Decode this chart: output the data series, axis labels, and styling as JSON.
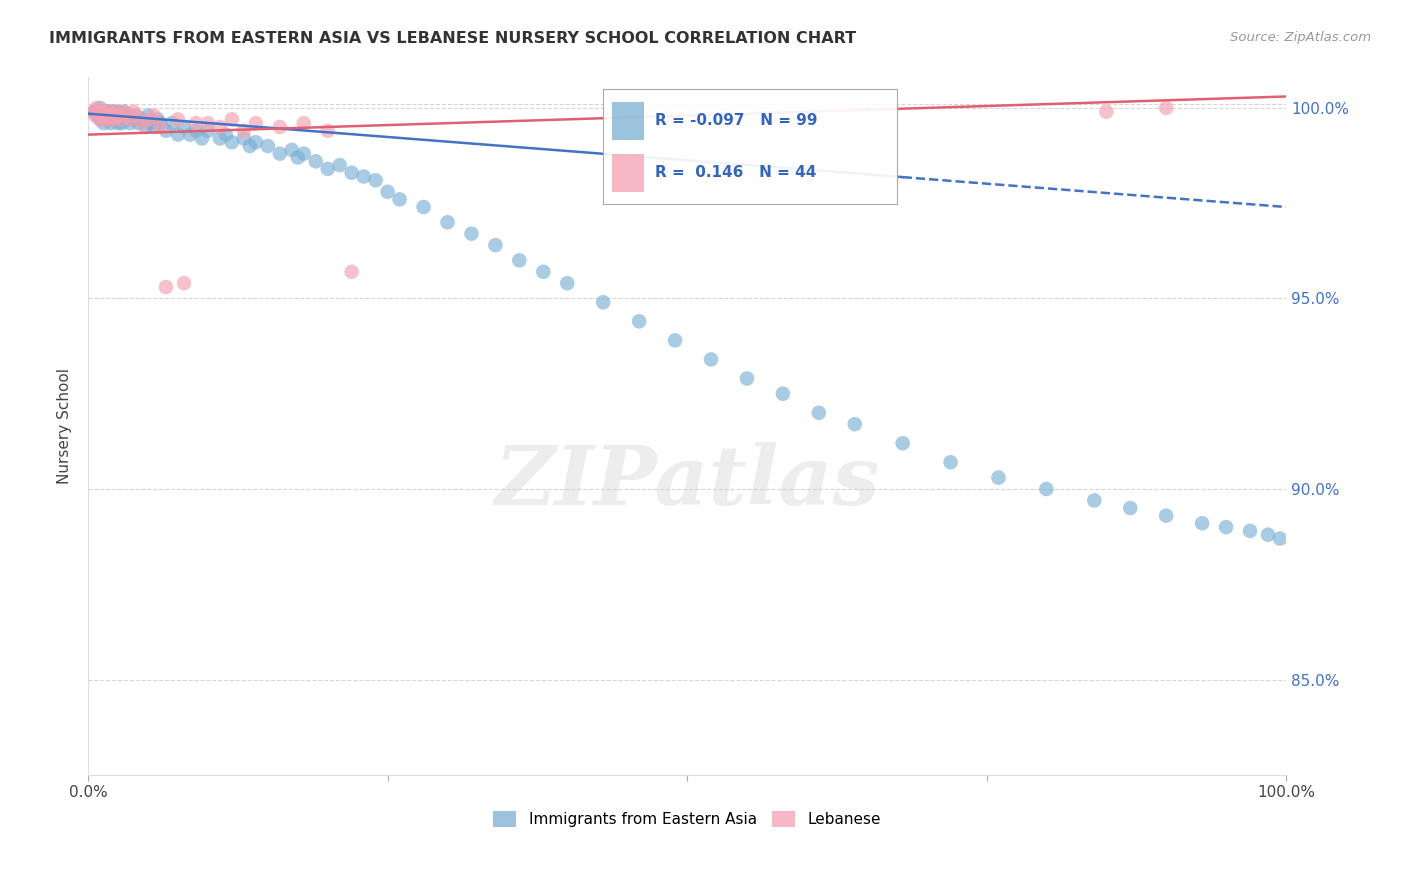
{
  "title": "IMMIGRANTS FROM EASTERN ASIA VS LEBANESE NURSERY SCHOOL CORRELATION CHART",
  "source": "Source: ZipAtlas.com",
  "ylabel": "Nursery School",
  "legend_blue_label": "Immigrants from Eastern Asia",
  "legend_pink_label": "Lebanese",
  "R_blue": -0.097,
  "N_blue": 99,
  "R_pink": 0.146,
  "N_pink": 44,
  "blue_color": "#7BAFD4",
  "pink_color": "#F4A0B0",
  "blue_line_color": "#4472C4",
  "pink_line_color": "#E06070",
  "xmin": 0.0,
  "xmax": 1.0,
  "ymin": 0.825,
  "ymax": 1.008,
  "yticks": [
    0.85,
    0.9,
    0.95,
    1.0
  ],
  "ytick_labels": [
    "85.0%",
    "90.0%",
    "95.0%",
    "100.0%"
  ],
  "grid_color": "#CCCCCC",
  "watermark": "ZIPatlas",
  "blue_scatter_x": [
    0.005,
    0.007,
    0.008,
    0.009,
    0.01,
    0.01,
    0.01,
    0.012,
    0.013,
    0.013,
    0.015,
    0.015,
    0.016,
    0.016,
    0.017,
    0.018,
    0.018,
    0.019,
    0.02,
    0.02,
    0.021,
    0.022,
    0.022,
    0.023,
    0.025,
    0.025,
    0.026,
    0.027,
    0.028,
    0.03,
    0.03,
    0.032,
    0.033,
    0.034,
    0.035,
    0.038,
    0.04,
    0.042,
    0.045,
    0.048,
    0.05,
    0.052,
    0.055,
    0.058,
    0.06,
    0.065,
    0.07,
    0.075,
    0.08,
    0.085,
    0.09,
    0.095,
    0.1,
    0.11,
    0.115,
    0.12,
    0.13,
    0.135,
    0.14,
    0.15,
    0.16,
    0.17,
    0.175,
    0.18,
    0.19,
    0.2,
    0.21,
    0.22,
    0.23,
    0.24,
    0.25,
    0.26,
    0.28,
    0.3,
    0.32,
    0.34,
    0.36,
    0.38,
    0.4,
    0.43,
    0.46,
    0.49,
    0.52,
    0.55,
    0.58,
    0.61,
    0.64,
    0.68,
    0.72,
    0.76,
    0.8,
    0.84,
    0.87,
    0.9,
    0.93,
    0.95,
    0.97,
    0.985,
    0.995
  ],
  "blue_scatter_y": [
    0.999,
    0.999,
    0.998,
    0.998,
    1.0,
    0.999,
    0.997,
    0.999,
    0.998,
    0.996,
    0.999,
    0.998,
    0.999,
    0.997,
    0.998,
    0.997,
    0.999,
    0.996,
    0.999,
    0.997,
    0.998,
    0.999,
    0.997,
    0.998,
    0.999,
    0.996,
    0.998,
    0.997,
    0.996,
    0.999,
    0.997,
    0.998,
    0.997,
    0.998,
    0.996,
    0.997,
    0.998,
    0.996,
    0.997,
    0.995,
    0.998,
    0.996,
    0.995,
    0.997,
    0.996,
    0.994,
    0.996,
    0.993,
    0.995,
    0.993,
    0.994,
    0.992,
    0.994,
    0.992,
    0.993,
    0.991,
    0.992,
    0.99,
    0.991,
    0.99,
    0.988,
    0.989,
    0.987,
    0.988,
    0.986,
    0.984,
    0.985,
    0.983,
    0.982,
    0.981,
    0.978,
    0.976,
    0.974,
    0.97,
    0.967,
    0.964,
    0.96,
    0.957,
    0.954,
    0.949,
    0.944,
    0.939,
    0.934,
    0.929,
    0.925,
    0.92,
    0.917,
    0.912,
    0.907,
    0.903,
    0.9,
    0.897,
    0.895,
    0.893,
    0.891,
    0.89,
    0.889,
    0.888,
    0.887
  ],
  "pink_scatter_x": [
    0.005,
    0.006,
    0.007,
    0.008,
    0.009,
    0.01,
    0.01,
    0.011,
    0.012,
    0.013,
    0.014,
    0.015,
    0.016,
    0.018,
    0.019,
    0.02,
    0.022,
    0.023,
    0.025,
    0.028,
    0.03,
    0.032,
    0.035,
    0.038,
    0.04,
    0.045,
    0.05,
    0.055,
    0.06,
    0.065,
    0.075,
    0.08,
    0.09,
    0.1,
    0.11,
    0.12,
    0.13,
    0.14,
    0.16,
    0.18,
    0.2,
    0.22,
    0.85,
    0.9
  ],
  "pink_scatter_y": [
    0.999,
    0.998,
    1.0,
    0.999,
    0.998,
    0.999,
    0.997,
    0.999,
    0.998,
    0.999,
    0.997,
    0.999,
    0.998,
    0.997,
    0.999,
    0.998,
    0.997,
    0.999,
    0.998,
    0.997,
    0.999,
    0.998,
    0.997,
    0.999,
    0.998,
    0.996,
    0.997,
    0.998,
    0.995,
    0.953,
    0.997,
    0.954,
    0.996,
    0.996,
    0.995,
    0.997,
    0.994,
    0.996,
    0.995,
    0.996,
    0.994,
    0.957,
    0.999,
    1.0
  ]
}
